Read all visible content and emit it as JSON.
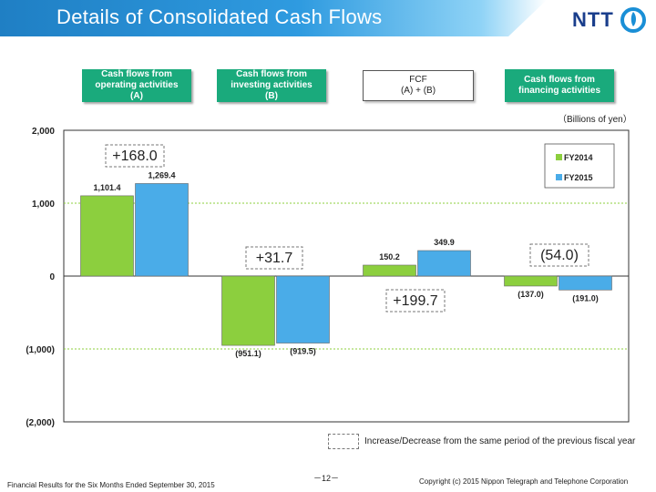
{
  "header": {
    "title": "Details of Consolidated Cash Flows",
    "logo_text": "NTT"
  },
  "column_headers": [
    {
      "line1": "Cash flows from",
      "line2": "operating activities",
      "line3": "(A)"
    },
    {
      "line1": "Cash flows from",
      "line2": "investing activities",
      "line3": "(B)"
    },
    {
      "line1": "FCF",
      "line2": "(A) + (B)",
      "line3": ""
    },
    {
      "line1": "Cash flows from",
      "line2": "financing activities",
      "line3": ""
    }
  ],
  "units_label": "（Billions of yen）",
  "chart_data": {
    "type": "bar",
    "categories": [
      "Cash flows from operating activities (A)",
      "Cash flows from investing activities (B)",
      "FCF (A) + (B)",
      "Cash flows from financing activities"
    ],
    "series": [
      {
        "name": "FY2014",
        "values": [
          1101.4,
          -951.1,
          150.2,
          -137.0
        ],
        "labels": [
          "1,101.4",
          "(951.1)",
          "150.2",
          "(137.0)"
        ],
        "color": "#8ccf3e"
      },
      {
        "name": "FY2015",
        "values": [
          1269.4,
          -919.5,
          349.9,
          -191.0
        ],
        "labels": [
          "1,269.4",
          "(919.5)",
          "349.9",
          "(191.0)"
        ],
        "color": "#4aace8"
      }
    ],
    "ylim": [
      -2000,
      2000
    ],
    "yticks": [
      2000,
      1000,
      0,
      -1000,
      -2000
    ],
    "ytick_labels": [
      "2,000",
      "1,000",
      "0",
      "(1,000)",
      "(2,000)"
    ],
    "gridlines": [
      1000,
      -1000
    ],
    "legend_position": "top-right",
    "annotations": [
      "+168.0",
      "+31.7",
      "+199.7",
      "(54.0)"
    ],
    "annotation_note": "Increase/Decrease  from the same period  of the previous fiscal year"
  },
  "footer": {
    "left": "Financial Results for the Six Months Ended September 30, 2015",
    "page": "－12－",
    "right": "Copyright (c) 2015  Nippon Telegraph and Telephone Corporation"
  }
}
